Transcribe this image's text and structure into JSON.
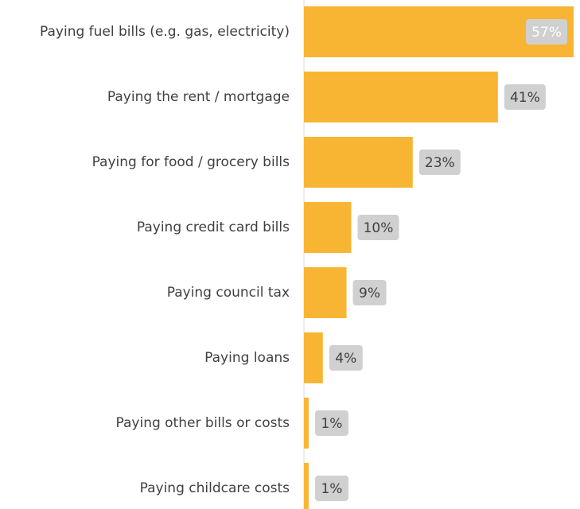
{
  "chart_data": {
    "type": "bar",
    "orientation": "horizontal",
    "categories": [
      "Paying fuel bills (e.g. gas, electricity)",
      "Paying the rent / mortgage",
      "Paying for food / grocery bills",
      "Paying credit card bills",
      "Paying council tax",
      "Paying loans",
      "Paying other bills or costs",
      "Paying childcare costs"
    ],
    "values": [
      57,
      41,
      23,
      10,
      9,
      4,
      1,
      1
    ],
    "value_labels": [
      "57%",
      "41%",
      "23%",
      "10%",
      "9%",
      "4%",
      "1%",
      "1%"
    ],
    "unit": "%",
    "title": "",
    "xlabel": "",
    "ylabel": "",
    "xlim": [
      0,
      57
    ],
    "grid": false,
    "bar_color": "#F8B534",
    "label_badge_color": "#D0D0D0",
    "label_text_color": "#404040",
    "inside_label_text_color": "#FFFFFF"
  }
}
